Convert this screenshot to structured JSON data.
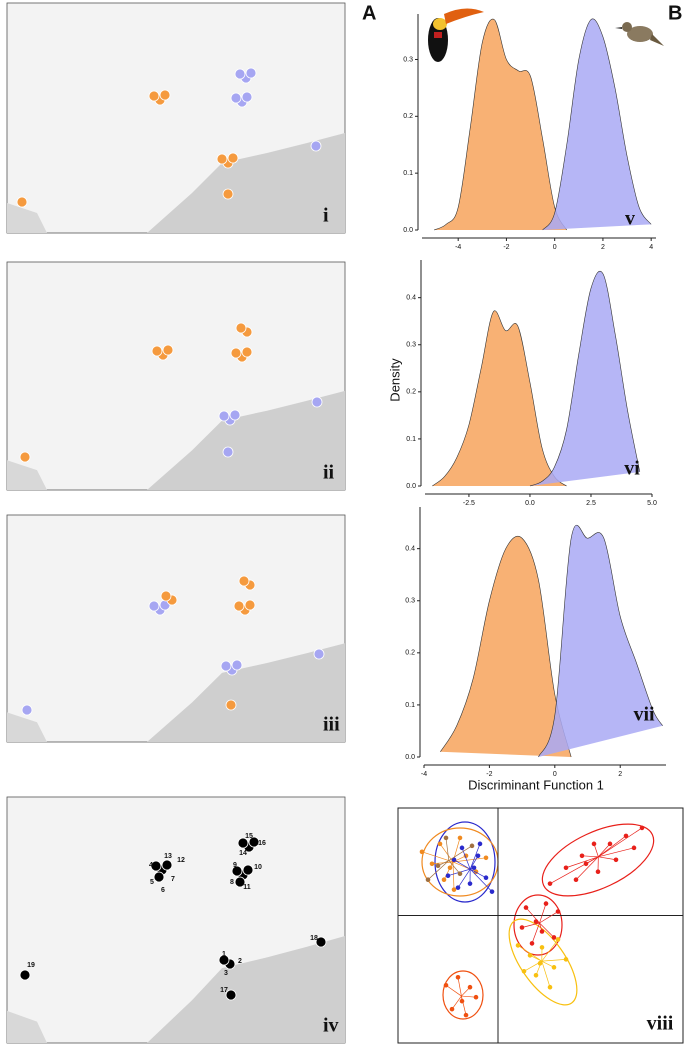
{
  "panel_letters": [
    "A",
    "B"
  ],
  "maps": [
    {
      "label": "i"
    },
    {
      "label": "ii"
    },
    {
      "label": "iii"
    },
    {
      "label": "iv",
      "site_labels": [
        "1",
        "2",
        "3",
        "4",
        "5",
        "6",
        "7",
        "8",
        "9",
        "10",
        "11",
        "12",
        "13",
        "14",
        "15",
        "16",
        "17",
        "18",
        "19"
      ]
    }
  ],
  "chart_data": [
    {
      "type": "area",
      "label": "v",
      "x": [
        -5,
        -4.5,
        -4,
        -3.5,
        -3,
        -2.5,
        -2,
        -1.5,
        -1,
        -0.5,
        0,
        0.5,
        1,
        1.5,
        2,
        2.5,
        3,
        3.5,
        4
      ],
      "series": [
        {
          "color": "#f7a35c",
          "values": [
            0.0,
            0.01,
            0.04,
            0.18,
            0.33,
            0.37,
            0.3,
            0.28,
            0.27,
            0.16,
            0.04,
            0.0,
            null,
            null,
            null,
            null,
            null,
            null,
            null
          ]
        },
        {
          "color": "#a9a9f5",
          "values": [
            null,
            null,
            null,
            null,
            null,
            null,
            null,
            null,
            null,
            0.0,
            0.03,
            0.15,
            0.3,
            0.37,
            0.34,
            0.25,
            0.13,
            0.04,
            0.01
          ]
        }
      ],
      "xlim": [
        -5.5,
        4.2
      ],
      "ylim": [
        0,
        0.38
      ],
      "xticks": [
        -4,
        -2,
        0,
        2,
        4
      ],
      "yticks": [
        {
          "value": 0,
          "label": "0.0"
        },
        0.1,
        0.2,
        0.3
      ]
    },
    {
      "type": "area",
      "label": "vi",
      "y_label": "Density",
      "x": [
        -4,
        -3.5,
        -3,
        -2.5,
        -2,
        -1.5,
        -1,
        -0.5,
        0,
        0.5,
        1,
        1.5,
        2,
        2.5,
        3,
        3.5,
        4,
        4.5
      ],
      "series": [
        {
          "color": "#f7a35c",
          "values": [
            0.0,
            0.02,
            0.06,
            0.13,
            0.25,
            0.37,
            0.33,
            0.34,
            0.22,
            0.08,
            0.02,
            0.0,
            null,
            null,
            null,
            null,
            null,
            null
          ]
        },
        {
          "color": "#a9a9f5",
          "values": [
            null,
            null,
            null,
            null,
            null,
            null,
            null,
            null,
            0.0,
            0.01,
            0.04,
            0.12,
            0.28,
            0.42,
            0.45,
            0.32,
            0.16,
            0.03
          ]
        }
      ],
      "xlim": [
        -4.3,
        5.0
      ],
      "ylim": [
        0,
        0.48
      ],
      "xticks": [
        -2.5,
        {
          "value": 0,
          "label": "0.0"
        },
        2.5,
        {
          "value": 5,
          "label": "5.0"
        }
      ],
      "yticks": [
        {
          "value": 0,
          "label": "0.0"
        },
        0.1,
        0.2,
        0.3,
        0.4
      ]
    },
    {
      "type": "area",
      "label": "vii",
      "x_label": "Discriminant Function 1",
      "x": [
        -3.5,
        -3,
        -2.5,
        -2,
        -1.5,
        -1,
        -0.5,
        0,
        0.5,
        1,
        1.5,
        2,
        2.5,
        3,
        3.3
      ],
      "series": [
        {
          "color": "#f7a35c",
          "values": [
            0.01,
            0.06,
            0.15,
            0.3,
            0.4,
            0.42,
            0.34,
            0.12,
            0.0,
            null,
            null,
            null,
            null,
            null,
            null
          ]
        },
        {
          "color": "#a9a9f5",
          "values": [
            null,
            null,
            null,
            null,
            null,
            null,
            0.0,
            0.08,
            0.42,
            0.42,
            0.42,
            0.27,
            0.18,
            0.09,
            0.06
          ]
        }
      ],
      "xlim": [
        -4,
        3.4
      ],
      "ylim": [
        0,
        0.48
      ],
      "xticks": [
        -4,
        -2,
        0,
        2
      ],
      "yticks": [
        {
          "value": 0,
          "label": "0.0"
        },
        0.1,
        0.2,
        0.3,
        0.4
      ]
    },
    {
      "type": "scatter",
      "label": "viii",
      "xlim": [
        -5,
        9.25
      ],
      "ylim": [
        -6.4,
        5.4
      ],
      "series": [
        {
          "color": "#f08a20",
          "x": [
            -3.8,
            -2.9,
            -2.4,
            -1.6,
            -1.1,
            -2.7,
            -3.3,
            -1.9,
            -0.6,
            -2.2
          ],
          "y": [
            3.2,
            3.6,
            2.4,
            3.0,
            2.2,
            1.8,
            2.6,
            3.9,
            2.9,
            1.3
          ]
        },
        {
          "color": "#2a2acc",
          "x": [
            -2.5,
            -1.8,
            -1.0,
            -0.6,
            -2.2,
            -1.4,
            -0.9,
            -2.0,
            -1.2,
            -0.3
          ],
          "y": [
            2.0,
            3.4,
            3.0,
            1.9,
            2.8,
            1.6,
            3.6,
            1.4,
            2.4,
            1.2
          ]
        },
        {
          "color": "#a07040",
          "x": [
            -3.5,
            -2.6,
            -1.9,
            -1.3,
            -3.0
          ],
          "y": [
            1.8,
            3.9,
            2.1,
            3.5,
            2.5
          ]
        },
        {
          "color": "#e8201a",
          "x": [
            2.6,
            3.4,
            4.2,
            5.0,
            5.6,
            6.4,
            7.2,
            4.8,
            5.9,
            3.9,
            6.8,
            4.4
          ],
          "y": [
            1.6,
            2.4,
            3.0,
            2.2,
            3.6,
            4.0,
            4.4,
            3.6,
            2.8,
            1.8,
            3.4,
            2.6
          ]
        },
        {
          "color": "#e8201a",
          "x": [
            1.4,
            1.9,
            2.4,
            2.8,
            1.7,
            2.2,
            3.0,
            1.2
          ],
          "y": [
            0.4,
            -0.3,
            0.6,
            -1.1,
            -1.4,
            -0.8,
            0.2,
            -0.6
          ]
        },
        {
          "color": "#f8c010",
          "x": [
            1.0,
            1.6,
            2.2,
            2.8,
            3.4,
            1.9,
            2.6,
            1.3,
            3.0,
            2.1
          ],
          "y": [
            -1.5,
            -2.0,
            -1.6,
            -2.6,
            -2.2,
            -3.0,
            -3.6,
            -2.8,
            -1.2,
            -2.4
          ]
        },
        {
          "color": "#f05010",
          "x": [
            -2.6,
            -2.0,
            -1.4,
            -1.8,
            -1.1,
            -2.3,
            -1.6
          ],
          "y": [
            -3.5,
            -3.1,
            -3.6,
            -4.3,
            -4.1,
            -4.7,
            -5.0
          ]
        }
      ]
    }
  ]
}
